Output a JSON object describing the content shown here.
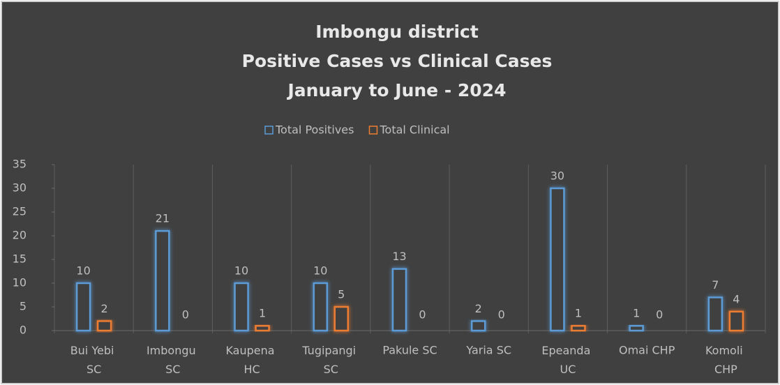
{
  "chart_data": {
    "type": "bar",
    "title": [
      "Imbongu district",
      "Positive Cases vs Clinical Cases",
      "January to June - 2024"
    ],
    "categories": [
      "Bui Yebi SC",
      "Imbongu SC",
      "Kaupena HC",
      "Tugipangi SC",
      "Pakule SC",
      "Yaria SC",
      "Epeanda UC",
      "Omai CHP",
      "Komoli CHP"
    ],
    "series": [
      {
        "name": "Total Positives",
        "color": "#5b9bd5",
        "values": [
          10,
          21,
          10,
          10,
          13,
          2,
          30,
          1,
          7
        ]
      },
      {
        "name": "Total Clinical",
        "color": "#ed7d31",
        "values": [
          2,
          0,
          1,
          5,
          0,
          0,
          1,
          0,
          4
        ]
      }
    ],
    "ylim": [
      0,
      35
    ],
    "yticks": [
      0,
      5,
      10,
      15,
      20,
      25,
      30,
      35
    ],
    "legend": "top"
  }
}
